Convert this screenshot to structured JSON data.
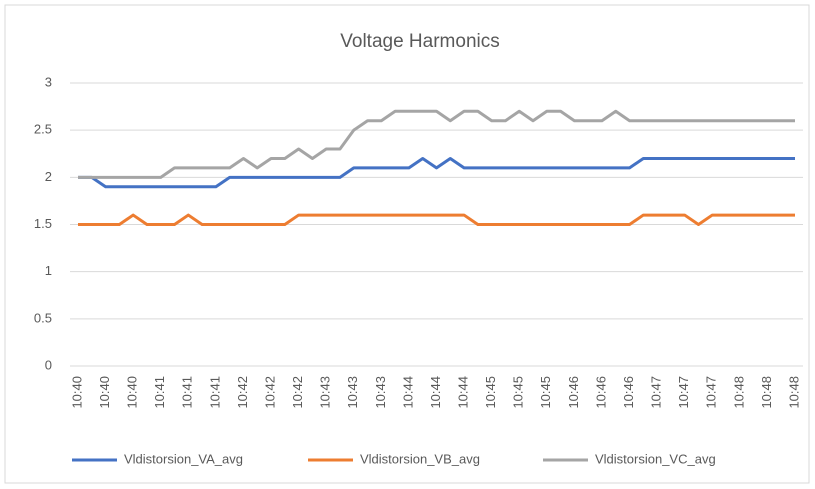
{
  "chart_data": {
    "type": "line",
    "title": "Voltage Harmonics",
    "categories": [
      "10:40",
      null,
      "10:40",
      null,
      "10:40",
      null,
      "10:41",
      null,
      "10:41",
      null,
      "10:41",
      null,
      "10:42",
      null,
      "10:42",
      null,
      "10:42",
      null,
      "10:43",
      null,
      "10:43",
      null,
      "10:43",
      null,
      "10:44",
      null,
      "10:44",
      null,
      "10:44",
      null,
      "10:45",
      null,
      "10:45",
      null,
      "10:45",
      null,
      "10:46",
      null,
      "10:46",
      null,
      "10:46",
      null,
      "10:47",
      null,
      "10:47",
      null,
      "10:47",
      null,
      "10:48",
      null,
      "10:48",
      null,
      "10:48"
    ],
    "series": [
      {
        "name": "Vldistorsion_VA_avg",
        "color": "#4472c4",
        "values": [
          2,
          2,
          1.9,
          1.9,
          1.9,
          1.9,
          1.9,
          1.9,
          1.9,
          1.9,
          1.9,
          2,
          2,
          2,
          2,
          2,
          2,
          2,
          2,
          2,
          2.1,
          2.1,
          2.1,
          2.1,
          2.1,
          2.2,
          2.1,
          2.2,
          2.1,
          2.1,
          2.1,
          2.1,
          2.1,
          2.1,
          2.1,
          2.1,
          2.1,
          2.1,
          2.1,
          2.1,
          2.1,
          2.2,
          2.2,
          2.2,
          2.2,
          2.2,
          2.2,
          2.2,
          2.2,
          2.2,
          2.2,
          2.2,
          2.2
        ]
      },
      {
        "name": "Vldistorsion_VB_avg",
        "color": "#ed7d31",
        "values": [
          1.5,
          1.5,
          1.5,
          1.5,
          1.6,
          1.5,
          1.5,
          1.5,
          1.6,
          1.5,
          1.5,
          1.5,
          1.5,
          1.5,
          1.5,
          1.5,
          1.6,
          1.6,
          1.6,
          1.6,
          1.6,
          1.6,
          1.6,
          1.6,
          1.6,
          1.6,
          1.6,
          1.6,
          1.6,
          1.5,
          1.5,
          1.5,
          1.5,
          1.5,
          1.5,
          1.5,
          1.5,
          1.5,
          1.5,
          1.5,
          1.5,
          1.6,
          1.6,
          1.6,
          1.6,
          1.5,
          1.6,
          1.6,
          1.6,
          1.6,
          1.6,
          1.6,
          1.6
        ]
      },
      {
        "name": "Vldistorsion_VC_avg",
        "color": "#a5a5a5",
        "values": [
          2,
          2,
          2,
          2,
          2,
          2,
          2,
          2.1,
          2.1,
          2.1,
          2.1,
          2.1,
          2.2,
          2.1,
          2.2,
          2.2,
          2.3,
          2.2,
          2.3,
          2.3,
          2.5,
          2.6,
          2.6,
          2.7,
          2.7,
          2.7,
          2.7,
          2.6,
          2.7,
          2.7,
          2.6,
          2.6,
          2.7,
          2.6,
          2.7,
          2.7,
          2.6,
          2.6,
          2.6,
          2.7,
          2.6,
          2.6,
          2.6,
          2.6,
          2.6,
          2.6,
          2.6,
          2.6,
          2.6,
          2.6,
          2.6,
          2.6,
          2.6
        ]
      }
    ],
    "ylim": [
      0,
      3
    ],
    "yticks": [
      0,
      0.5,
      1,
      1.5,
      2,
      2.5,
      3
    ],
    "grid": true
  }
}
